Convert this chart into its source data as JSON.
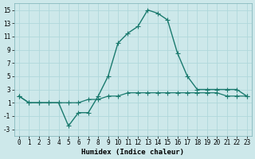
{
  "xlabel": "Humidex (Indice chaleur)",
  "background_color": "#cde8ea",
  "grid_color": "#b0d8db",
  "line_color": "#1a7a6e",
  "x_main": [
    0,
    1,
    2,
    3,
    4,
    5,
    6,
    7,
    8,
    9,
    10,
    11,
    12,
    13,
    14,
    15,
    16,
    17,
    18,
    19,
    20,
    21,
    22,
    23
  ],
  "y_main": [
    2.0,
    1.0,
    1.0,
    1.0,
    1.0,
    -2.5,
    -0.5,
    -0.5,
    2.0,
    5.0,
    10.0,
    11.5,
    12.5,
    15.0,
    14.5,
    13.5,
    8.5,
    5.0,
    3.0,
    3.0,
    3.0,
    3.0,
    3.0,
    2.0
  ],
  "x_flat": [
    0,
    1,
    2,
    3,
    4,
    5,
    6,
    7,
    8,
    9,
    10,
    11,
    12,
    13,
    14,
    15,
    16,
    17,
    18,
    19,
    20,
    21,
    22,
    23
  ],
  "y_flat": [
    2.0,
    1.0,
    1.0,
    1.0,
    1.0,
    1.0,
    1.0,
    1.5,
    1.5,
    2.0,
    2.0,
    2.5,
    2.5,
    2.5,
    2.5,
    2.5,
    2.5,
    2.5,
    2.5,
    2.5,
    2.5,
    2.0,
    2.0,
    2.0
  ],
  "ylim": [
    -4,
    16
  ],
  "xlim": [
    -0.5,
    23.5
  ],
  "yticks": [
    -3,
    -1,
    1,
    3,
    5,
    7,
    9,
    11,
    13,
    15
  ],
  "xticks": [
    0,
    1,
    2,
    3,
    4,
    5,
    6,
    7,
    8,
    9,
    10,
    11,
    12,
    13,
    14,
    15,
    16,
    17,
    18,
    19,
    20,
    21,
    22,
    23
  ],
  "marker_size": 2.5,
  "linewidth_main": 1.0,
  "linewidth_flat": 0.9,
  "tick_fontsize": 5.5,
  "xlabel_fontsize": 6.5
}
